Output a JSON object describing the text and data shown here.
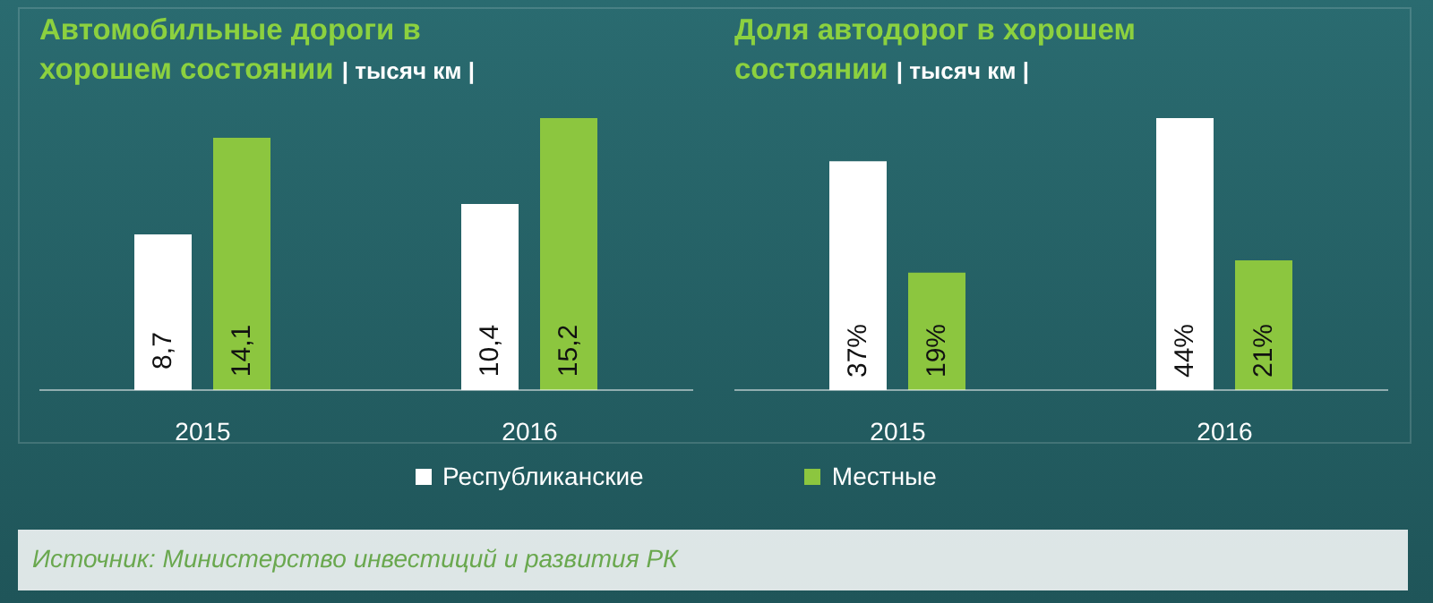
{
  "chart_data": [
    {
      "type": "bar",
      "title": "Автомобильные дороги в хорошем состоянии",
      "subtitle": "| тысяч км |",
      "categories": [
        "2015",
        "2016"
      ],
      "series": [
        {
          "name": "Республиканские",
          "color": "#ffffff",
          "values": [
            8.7,
            10.4
          ],
          "value_labels": [
            "8,7",
            "10,4"
          ]
        },
        {
          "name": "Местные",
          "color": "#8cc63f",
          "values": [
            14.1,
            15.2
          ],
          "value_labels": [
            "14,1",
            "15,2"
          ]
        }
      ],
      "tick_labels": "x",
      "legend": "bottom",
      "annotations": [
        "Источник: Министерство инвестиций и развития РК"
      ]
    },
    {
      "type": "bar",
      "title": "Доля автодорог в хорошем состоянии",
      "subtitle": "| тысяч км |",
      "categories": [
        "2015",
        "2016"
      ],
      "series": [
        {
          "color": "#ffffff",
          "values": [
            37,
            44
          ],
          "value_labels": [
            "37%",
            "44%"
          ]
        },
        {
          "color": "#8cc63f",
          "values": [
            19,
            21
          ],
          "value_labels": [
            "19%",
            "21%"
          ]
        }
      ],
      "tick_labels": "x"
    }
  ]
}
